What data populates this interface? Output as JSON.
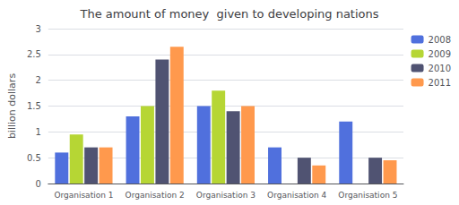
{
  "chart_data": {
    "type": "bar",
    "title": "The amount of money  given to developing nations",
    "ylabel": "billion dollars",
    "categories": [
      "Organisation 1",
      "Organisation 2",
      "Organisation 3",
      "Organisation 4",
      "Organisation 5"
    ],
    "series": [
      {
        "name": "2008",
        "values": [
          0.6,
          1.3,
          1.5,
          0.7,
          1.2
        ]
      },
      {
        "name": "2009",
        "values": [
          0.95,
          1.5,
          1.8,
          0.0,
          0.0
        ]
      },
      {
        "name": "2010",
        "values": [
          0.7,
          2.4,
          1.4,
          0.5,
          0.5
        ]
      },
      {
        "name": "2011",
        "values": [
          0.7,
          2.65,
          1.5,
          0.35,
          0.45
        ]
      }
    ],
    "ylim": [
      0,
      3.0
    ],
    "yticks": [
      0,
      0.5,
      1.0,
      1.5,
      2.0,
      2.5,
      3
    ],
    "grid": true,
    "legend": "upper right"
  }
}
